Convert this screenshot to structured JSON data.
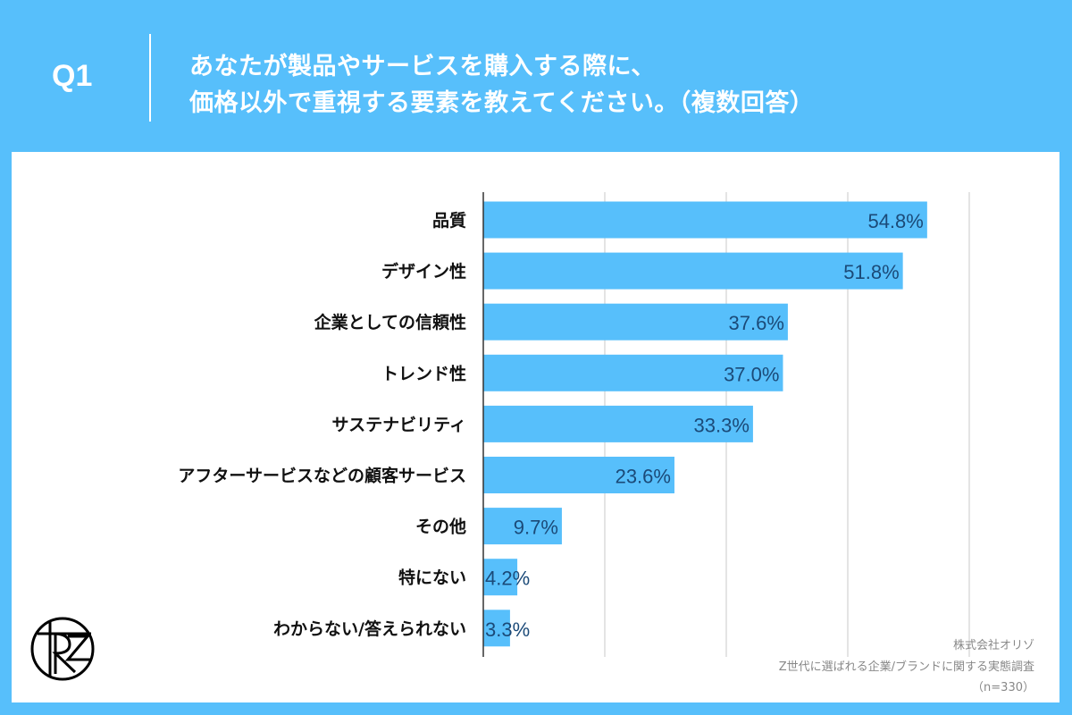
{
  "header": {
    "question_no": "Q1",
    "title_line1": "あなたが製品やサービスを購入する際に、",
    "title_line2": "価格以外で重視する要素を教えてください。（複数回答）"
  },
  "footer": {
    "company": "株式会社オリゾ",
    "survey": "Z世代に選ばれる企業/ブランドに関する実態調査",
    "sample": "（n=330）"
  },
  "logo": {
    "text": "RZ"
  },
  "colors": {
    "background": "#57bffb",
    "bar": "#57bffb",
    "value_label": "#1b4a78"
  },
  "chart_data": {
    "type": "bar",
    "orientation": "horizontal",
    "categories": [
      "品質",
      "デザイン性",
      "企業としての信頼性",
      "トレンド性",
      "サステナビリティ",
      "アフターサービスなどの顧客サービス",
      "その他",
      "特にない",
      "わからない/答えられない"
    ],
    "values": [
      54.8,
      51.8,
      37.6,
      37.0,
      33.3,
      23.6,
      9.7,
      4.2,
      3.3
    ],
    "value_labels": [
      "54.8%",
      "51.8%",
      "37.6%",
      "37.0%",
      "33.3%",
      "23.6%",
      "9.7%",
      "4.2%",
      "3.3%"
    ],
    "xlim": [
      0,
      60
    ],
    "grid_step": 15,
    "grid": true,
    "tick_labels_shown": false
  }
}
